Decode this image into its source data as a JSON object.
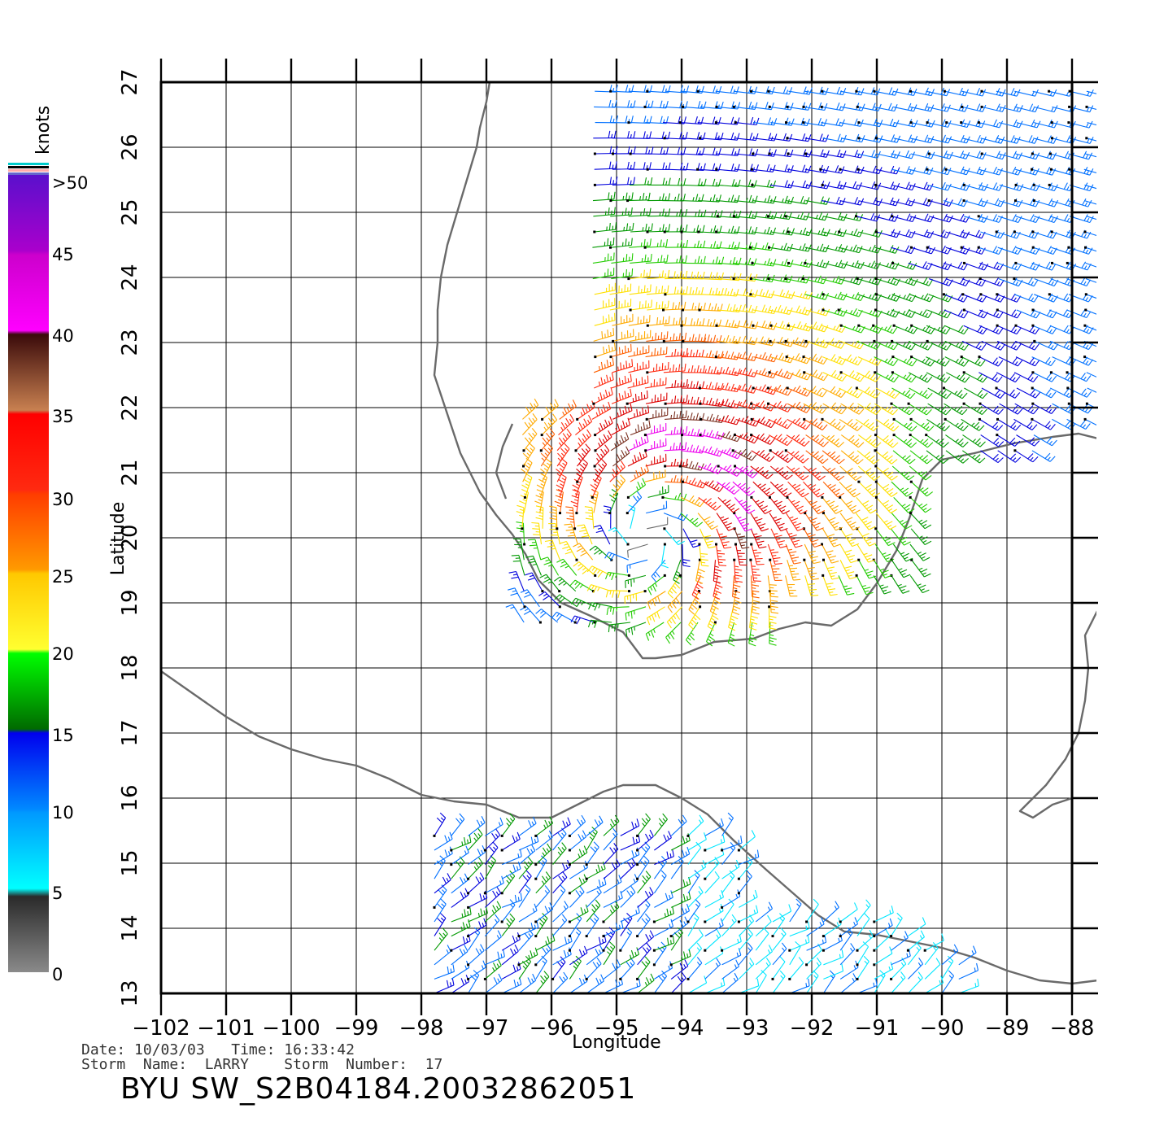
{
  "map": {
    "xlabel": "Longitude",
    "ylabel": "Latitude",
    "lon_range": [
      -102,
      -88
    ],
    "lat_range": [
      13,
      27
    ],
    "lon_ticks": [
      "−102",
      "−101",
      "−100",
      "−99",
      "−98",
      "−97",
      "−96",
      "−95",
      "−94",
      "−93",
      "−92",
      "−91",
      "−90",
      "−89",
      "−88"
    ],
    "lat_ticks": [
      "13",
      "14",
      "15",
      "16",
      "17",
      "18",
      "19",
      "20",
      "21",
      "22",
      "23",
      "24",
      "25",
      "26",
      "27"
    ]
  },
  "colorbar": {
    "unit_label": "knots",
    "labels": [
      ">50",
      "45",
      "40",
      "35",
      "30",
      "25",
      "20",
      "15",
      "10",
      "5",
      "0"
    ],
    "bands": [
      {
        "range": [
          0,
          5
        ],
        "colors": [
          "#8a8a8a",
          "#2a2a2a"
        ]
      },
      {
        "range": [
          5,
          10
        ],
        "colors": [
          "#00ffff",
          "#0099ff"
        ]
      },
      {
        "range": [
          10,
          15
        ],
        "colors": [
          "#0088ff",
          "#0000ee"
        ]
      },
      {
        "range": [
          15,
          20
        ],
        "colors": [
          "#006a00",
          "#00ff00"
        ]
      },
      {
        "range": [
          20,
          25
        ],
        "colors": [
          "#ffff30",
          "#ffc800"
        ]
      },
      {
        "range": [
          25,
          30
        ],
        "colors": [
          "#ff9a00",
          "#ff3c00"
        ]
      },
      {
        "range": [
          30,
          35
        ],
        "colors": [
          "#ff2a10",
          "#ff0000"
        ]
      },
      {
        "range": [
          35,
          40
        ],
        "colors": [
          "#c88050",
          "#3a0a0a"
        ]
      },
      {
        "range": [
          40,
          45
        ],
        "colors": [
          "#ff00ff",
          "#cc00cc"
        ]
      },
      {
        "range": [
          45,
          50
        ],
        "colors": [
          "#aa00cc",
          "#5a10cc"
        ]
      }
    ]
  },
  "info": {
    "date_line": "Date: 10/03/03   Time: 16:33:42",
    "storm_line": "Storm  Name:  LARRY    Storm  Number:  17",
    "product": "BYU  SW_S2B04184.20032862051"
  },
  "storm": {
    "name": "LARRY",
    "center_lon": -94.4,
    "center_lat": 20.3
  }
}
